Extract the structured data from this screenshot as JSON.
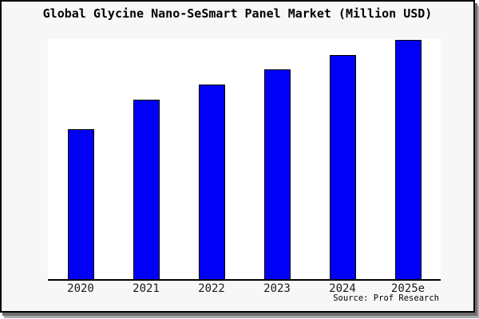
{
  "colors": {
    "bar_fill": "#0000F7",
    "bar_border": "#000000",
    "frame_background": "#f7f7f7",
    "plot_background": "#ffffff",
    "axis_line": "#000000",
    "frame_border": "#000000",
    "shadow": "#8a8a8a"
  },
  "chart_data": {
    "type": "bar",
    "title": "Global Glycine Nano-SeSmart Panel Market (Million USD)",
    "categories": [
      "2020",
      "2021",
      "2022",
      "2023",
      "2024",
      "2025e"
    ],
    "values": [
      62.6,
      74.8,
      81.1,
      87.4,
      93.4,
      99.7
    ],
    "xlabel": "",
    "ylabel": "",
    "ylim": [
      0,
      100
    ],
    "y_axis_visible": false,
    "x_tick_marks_visible": false,
    "grid": false,
    "legend": false,
    "bar_color": "#0000F7",
    "source_note": "Source: Prof Research"
  }
}
